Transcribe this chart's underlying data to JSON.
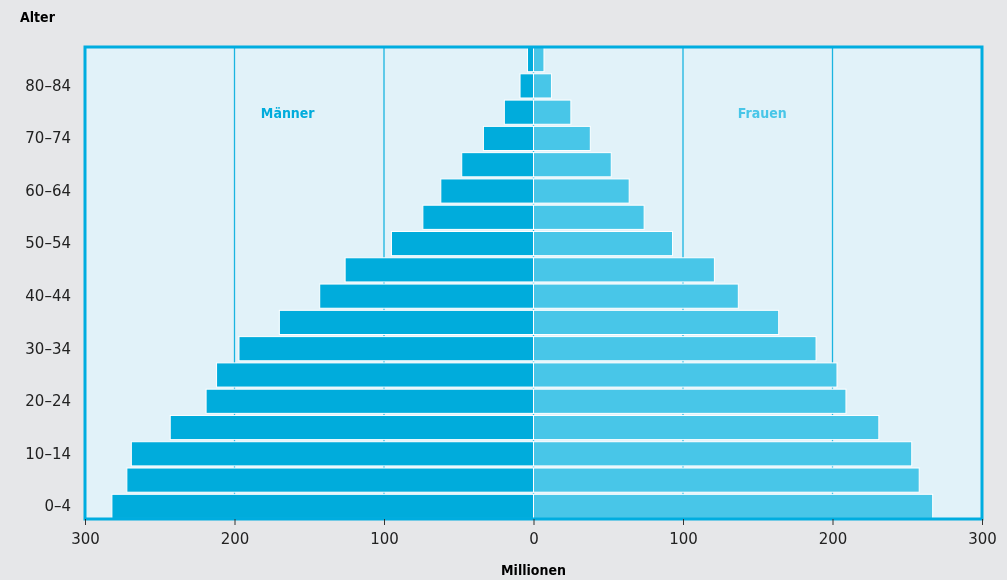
{
  "chart_data": {
    "type": "bar",
    "orientation": "horizontal",
    "stacked": true,
    "xlabel": "Millionen",
    "ylabel": "Alter",
    "categories": [
      null,
      "80–84",
      null,
      "70–74",
      null,
      "60–64",
      null,
      "50–54",
      null,
      "40–44",
      null,
      "30–34",
      null,
      "20–24",
      null,
      "10–14",
      null,
      "0–4"
    ],
    "series": [
      {
        "name": "Männer",
        "color": "#00acdc",
        "values": [
          -4,
          -9,
          -19.5,
          -33.5,
          -48,
          -62,
          -74,
          -95,
          -126,
          -143,
          -170,
          -197,
          -212,
          -219,
          -243,
          -269,
          -272,
          -282
        ]
      },
      {
        "name": "Frauen",
        "color": "#48c6e8",
        "values": [
          7,
          12,
          25,
          38,
          52,
          64,
          74,
          93,
          121,
          137,
          164,
          189,
          203,
          209,
          231,
          253,
          258,
          267
        ]
      }
    ],
    "xlim": [
      -300,
      300
    ],
    "xticks": [
      {
        "value": -300,
        "label": "300"
      },
      {
        "value": -200,
        "label": "200"
      },
      {
        "value": -100,
        "label": "100"
      },
      0,
      100,
      200,
      300
    ],
    "grid": "x"
  }
}
